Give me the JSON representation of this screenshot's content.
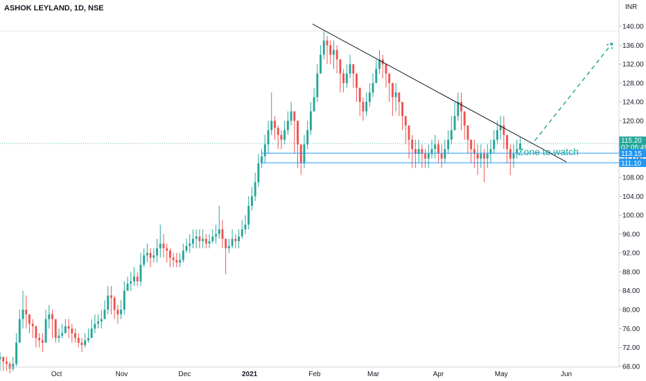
{
  "symbol_label": "ASHOK LEYLAND, 1D, NSE",
  "currency_label": "INR",
  "annotation": "Zone to watch",
  "current_price_label": "115.20",
  "countdown_label": "02:05:49",
  "level_1_label": "113.15",
  "level_2_label": "111.10",
  "colors": {
    "up": "#26a69a",
    "down": "#ef5350",
    "level": "#2196f3",
    "trendline": "#131722",
    "projection": "#26a69a",
    "price_tag": "#26a69a"
  },
  "chart_data": {
    "type": "candlestick",
    "title": "",
    "symbol": "ASHOK LEYLAND",
    "interval": "1D",
    "exchange": "NSE",
    "currency": "INR",
    "ylim": [
      66.5,
      145
    ],
    "y_ticks": [
      68,
      72,
      76,
      80,
      84,
      88,
      92,
      96,
      100,
      104,
      108,
      112,
      116,
      120,
      124,
      128,
      132,
      136,
      140
    ],
    "y_tick_labels": [
      "68.00",
      "72.00",
      "76.00",
      "80.00",
      "84.00",
      "88.00",
      "92.00",
      "96.00",
      "100.00",
      "104.00",
      "108.00",
      "112.00",
      "116.00",
      "120.00",
      "124.00",
      "128.00",
      "132.00",
      "136.00",
      "140.00"
    ],
    "x_labels": [
      "Oct",
      "Nov",
      "Dec",
      "2021",
      "Feb",
      "Mar",
      "Apr",
      "May",
      "Jun"
    ],
    "x_label_dates": [
      "2020-10-01",
      "2020-11-01",
      "2020-12-01",
      "2021-01-01",
      "2021-02-01",
      "2021-03-01",
      "2021-04-01",
      "2021-05-01",
      "2021-06-01"
    ],
    "x_range": [
      "2020-09-04",
      "2021-07-09"
    ],
    "candle_dates": [
      "2020-09-04",
      "2021-05-10"
    ],
    "closes": [
      70,
      69,
      68.5,
      67.5,
      68.5,
      73,
      78,
      80,
      79,
      77,
      76.5,
      74,
      73.5,
      73,
      78,
      79,
      78,
      74,
      74.5,
      75,
      76.5,
      76,
      75,
      74,
      73,
      72.5,
      73.5,
      74,
      76,
      77,
      77.5,
      78,
      80,
      83,
      82.5,
      80,
      79,
      80,
      84,
      85.5,
      86,
      87,
      86,
      89.5,
      91.5,
      92,
      91,
      91.5,
      93,
      94,
      93,
      92.5,
      91,
      90.5,
      90,
      90.5,
      92.5,
      93.5,
      94,
      95,
      95.5,
      94.5,
      95,
      94,
      94.5,
      95.5,
      96,
      97,
      95,
      93,
      93.5,
      95,
      94.5,
      95.5,
      97,
      98,
      102,
      104,
      107,
      111,
      112.5,
      115,
      118,
      120,
      118.5,
      117,
      116,
      118,
      120,
      122,
      120,
      115,
      111,
      115,
      118,
      122,
      125,
      130,
      134,
      137,
      136,
      134,
      135,
      133,
      130,
      128,
      130,
      132,
      130,
      127,
      124,
      122,
      124,
      126,
      128,
      131,
      133,
      132,
      130,
      128,
      125,
      126,
      124,
      121,
      119,
      116,
      114,
      113,
      114,
      113,
      112,
      113,
      114,
      115,
      113,
      112,
      114,
      116,
      118,
      121,
      124,
      122,
      119,
      116,
      114,
      113,
      112,
      113,
      112,
      113,
      114,
      116,
      118,
      119,
      117,
      114,
      112,
      113,
      114,
      115.2
    ],
    "highs": [
      71,
      70,
      70,
      69,
      70,
      75,
      80,
      84,
      83,
      79,
      78,
      76,
      75,
      75,
      80,
      81,
      80,
      77,
      76,
      77,
      78,
      78,
      77,
      76,
      75,
      74,
      75,
      76,
      78,
      79,
      79,
      80,
      82,
      85,
      85,
      83,
      81,
      82,
      86,
      87,
      88,
      89,
      88,
      92,
      93,
      94,
      93,
      93,
      95,
      98,
      96,
      94,
      93,
      92,
      92,
      92,
      94,
      95,
      96,
      97,
      97,
      97,
      97,
      96,
      96,
      97,
      98,
      102,
      99,
      95,
      95,
      97,
      96,
      97,
      99,
      100,
      104,
      106,
      109,
      113,
      114,
      117,
      120,
      126,
      121,
      119,
      118,
      120,
      122,
      124,
      122,
      118,
      114,
      117,
      120,
      124,
      127,
      132,
      136,
      139,
      138,
      137,
      137,
      136,
      133,
      131,
      132,
      134,
      132,
      130,
      127,
      125,
      126,
      128,
      130,
      133,
      135,
      134,
      132,
      130,
      128,
      128,
      126,
      124,
      121,
      119,
      117,
      116,
      116,
      115,
      114,
      115,
      116,
      117,
      116,
      115,
      116,
      118,
      121,
      124,
      126,
      126,
      122,
      119,
      116,
      116,
      115,
      115,
      114,
      115,
      116,
      118,
      120,
      121,
      121,
      117,
      115,
      115,
      116,
      116.5
    ],
    "lows": [
      67,
      67,
      67,
      66.5,
      67,
      68,
      73,
      76,
      76,
      75,
      74,
      72,
      72,
      71,
      73,
      76,
      74,
      73,
      73,
      74,
      75,
      74,
      73,
      73,
      72,
      71,
      72,
      73,
      74,
      75,
      76,
      76,
      78,
      79,
      79,
      78,
      77,
      78,
      79,
      84,
      84,
      85,
      85,
      85,
      89,
      90,
      89,
      90,
      90,
      91,
      91,
      90,
      89,
      89,
      89,
      89,
      90,
      92,
      92,
      93,
      93,
      93,
      93,
      93,
      93,
      94,
      94,
      95,
      93,
      87.5,
      92,
      93,
      93,
      93,
      95,
      96,
      97,
      101,
      103,
      106,
      110,
      111,
      113,
      117,
      116,
      114,
      114,
      115,
      117,
      119,
      113,
      110,
      108.5,
      110,
      114,
      117,
      122,
      124,
      130,
      133,
      132,
      132,
      131,
      130,
      126,
      126,
      127,
      129,
      127,
      124,
      121,
      120,
      121,
      123,
      125,
      128,
      130,
      129,
      127,
      124,
      121,
      122,
      121,
      118,
      115,
      112,
      110,
      110,
      111,
      110,
      110,
      110,
      112,
      112,
      111,
      110,
      111,
      113,
      115,
      118,
      120,
      118,
      116,
      113,
      111,
      110,
      108.5,
      110,
      107,
      110,
      111,
      113,
      115,
      116,
      114,
      111,
      108.5,
      110,
      112,
      113.5
    ],
    "horizontal_levels": [
      113.15,
      111.1
    ],
    "current_price": 115.2,
    "trendline": [
      {
        "date": "2021-01-31",
        "value": 140.5
      },
      {
        "date": "2021-06-01",
        "value": 111.3
      }
    ],
    "projection": [
      {
        "date": "2021-05-17",
        "value": 115.8
      },
      {
        "date": "2021-06-23",
        "value": 136.5
      }
    ]
  }
}
